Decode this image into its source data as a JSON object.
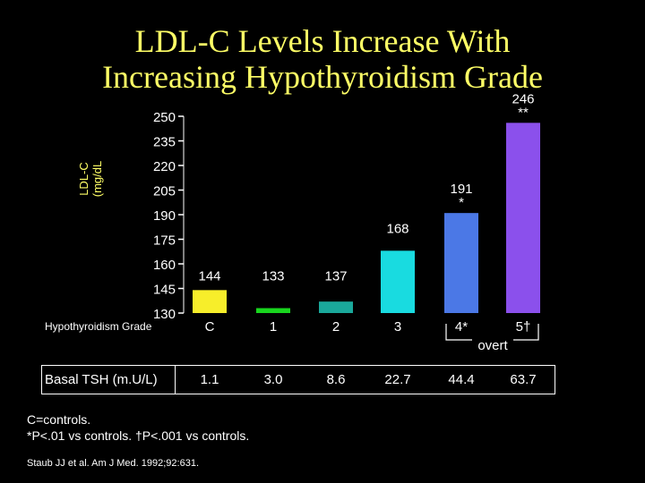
{
  "title_line1": "LDL-C Levels Increase With",
  "title_line2": "Increasing Hypothyroidism Grade",
  "colors": {
    "title": "#ffff66",
    "text": "#ffffff",
    "bars": [
      "#f7ee2a",
      "#19d61e",
      "#1aa89b",
      "#19dbe0",
      "#4b78e6",
      "#8b50ec"
    ]
  },
  "chart_data": {
    "type": "bar",
    "ylabel_line1": "LDL-C",
    "ylabel_line2": "(mg/dL",
    "yticks": [
      130,
      145,
      160,
      175,
      190,
      205,
      220,
      235,
      250
    ],
    "ylim": [
      130,
      250
    ],
    "xlabel": "Hypothyroidism Grade",
    "categories": [
      "C",
      "1",
      "2",
      "3",
      "4*",
      "5†"
    ],
    "values": [
      144,
      133,
      137,
      168,
      191,
      246
    ],
    "value_labels": [
      "144",
      "133",
      "137",
      "168",
      "191",
      "246"
    ],
    "significance": [
      "",
      "",
      "",
      "",
      "*",
      "**"
    ],
    "overt_label": "overt"
  },
  "tsh": {
    "label": "Basal TSH (m.U/L)",
    "values": [
      "1.1",
      "3.0",
      "8.6",
      "22.7",
      "44.4",
      "63.7"
    ]
  },
  "footnotes": {
    "line1": "C=controls.",
    "line2": "*P<.01 vs controls. †P<.001 vs controls.",
    "citation": "Staub JJ et al. Am J Med. 1992;92:631."
  }
}
